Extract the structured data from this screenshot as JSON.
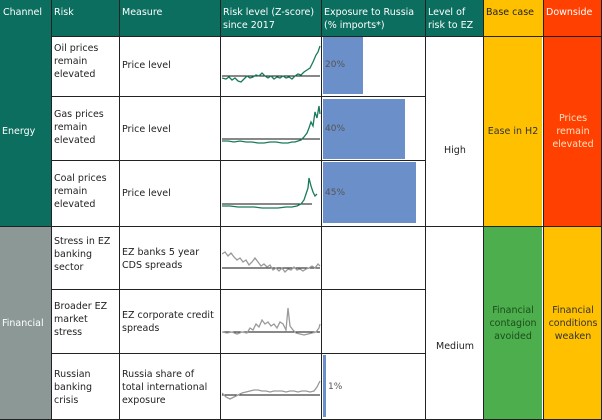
{
  "headers": {
    "channel": "Channel",
    "risk": "Risk",
    "measure": "Measure",
    "risk_level": "Risk level (Z-score) since 2017",
    "exposure": "Exposure to Russia (% imports*)",
    "level_ez": "Level of risk to EZ",
    "base_case": "Base case",
    "downside": "Downside"
  },
  "channels": [
    {
      "name": "Energy",
      "color": "#0b6e5f"
    },
    {
      "name": "Financial",
      "color": "#8c9896"
    }
  ],
  "rows": [
    {
      "risk": "Oil prices remain elevated",
      "measure": "Price level",
      "exposure": 20,
      "exposure_label": "20%"
    },
    {
      "risk": "Gas prices remain elevated",
      "measure": "Price level",
      "exposure": 40,
      "exposure_label": "40%"
    },
    {
      "risk": "Coal prices remain elevated",
      "measure": "Price level",
      "exposure": 45,
      "exposure_label": "45%"
    },
    {
      "risk": "Stress in EZ banking sector",
      "measure": "EZ banks 5 year CDS spreads",
      "exposure": 0,
      "exposure_label": ""
    },
    {
      "risk": "Broader EZ market stress",
      "measure": "EZ corporate credit spreads",
      "exposure": 0,
      "exposure_label": ""
    },
    {
      "risk": "Russian banking crisis",
      "measure": "Russia share of total international exposure",
      "exposure": 1,
      "exposure_label": "1%"
    }
  ],
  "levels": {
    "energy": "High",
    "financial": "Medium"
  },
  "cases": {
    "energy_base": "Ease in H2",
    "energy_down": "Prices remain elevated",
    "financial_base": "Financial contagion avoided",
    "financial_down": "Financial conditions weaken"
  },
  "colors": {
    "header": "#0b6e5f",
    "base_case": "#ffc000",
    "energy_downside": "#ff4000",
    "financial_base": "#4cae4c",
    "financial_downside": "#ffc000",
    "exposure_bar": "#6a8fc9",
    "energy_spark": "#1a7a5e",
    "financial_spark": "#9a9a9a"
  }
}
